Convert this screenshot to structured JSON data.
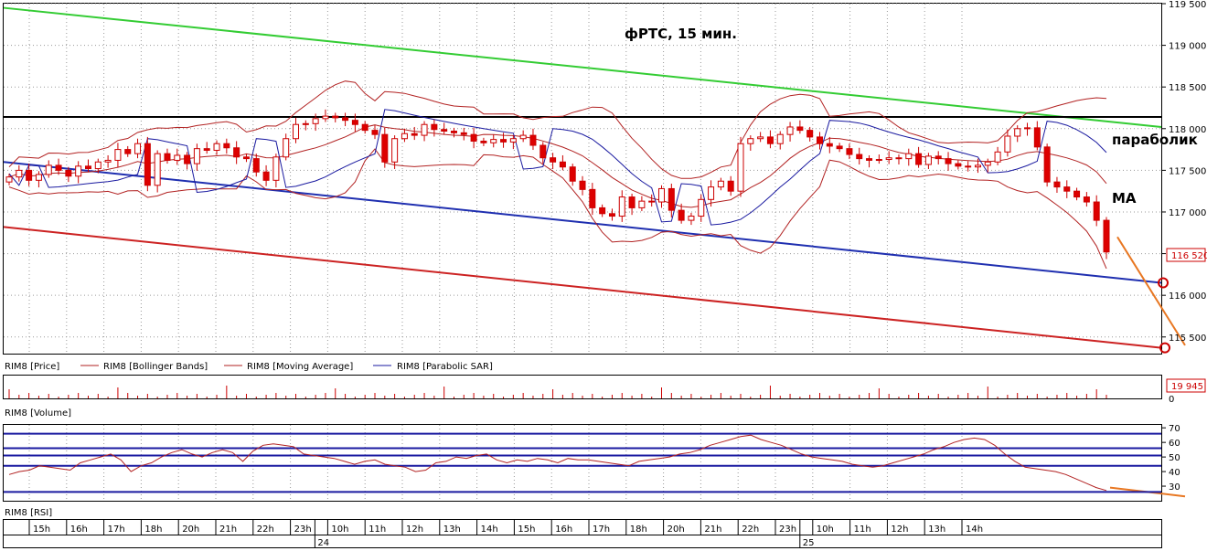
{
  "chart_data": {
    "type": "candlestick",
    "title": "фРТС, 15 мин.",
    "price_panel": {
      "ylim": [
        115300,
        119500
      ],
      "y_ticks": [
        "119 500",
        "119 000",
        "118 500",
        "118 000",
        "117 500",
        "117 000",
        "116 500",
        "116 000",
        "115 500"
      ],
      "y_tick_values": [
        119500,
        119000,
        118500,
        118000,
        117500,
        117000,
        116500,
        116000,
        115500
      ],
      "last_price_label": "116 520",
      "last_price": 116520,
      "legend": [
        {
          "name": "RIM8 [Price]",
          "color": "#cc0000"
        },
        {
          "name": "RIM8 [Bollinger Bands]",
          "color": "#b22222"
        },
        {
          "name": "RIM8 [Moving Average]",
          "color": "#b22222"
        },
        {
          "name": "RIM8 [Parabolic SAR]",
          "color": "#1a1aa0"
        }
      ],
      "annotations": [
        "параболик",
        "MA"
      ],
      "resistance_level": 118140,
      "trendlines": [
        {
          "color": "#33cc33",
          "from": 119450,
          "to": 118020
        },
        {
          "color": "#1f2fb0",
          "from": 117600,
          "to": 116150
        },
        {
          "color": "#cc2222",
          "from": 116820,
          "to": 115370
        }
      ],
      "candles_close": [
        117420,
        117500,
        117380,
        117450,
        117560,
        117500,
        117430,
        117550,
        117520,
        117600,
        117620,
        117750,
        117700,
        117820,
        117320,
        117700,
        117620,
        117680,
        117580,
        117760,
        117740,
        117820,
        117770,
        117660,
        117640,
        117480,
        117380,
        117660,
        117880,
        118050,
        118060,
        118120,
        118150,
        118130,
        118100,
        118050,
        117980,
        117930,
        117600,
        117880,
        117940,
        117920,
        118050,
        117990,
        117970,
        117950,
        117930,
        117850,
        117830,
        117870,
        117840,
        117880,
        117920,
        117800,
        117650,
        117600,
        117540,
        117370,
        117270,
        117050,
        116980,
        116950,
        117180,
        117050,
        117130,
        117120,
        117280,
        117020,
        116900,
        116950,
        117150,
        117300,
        117370,
        117250,
        117820,
        117880,
        117900,
        117820,
        117930,
        118020,
        117980,
        117900,
        117820,
        117790,
        117760,
        117690,
        117640,
        117620,
        117630,
        117650,
        117640,
        117700,
        117570,
        117670,
        117640,
        117580,
        117550,
        117540,
        117560,
        117600,
        117720,
        117910,
        118000,
        118010,
        117780,
        117360,
        117300,
        117250,
        117180,
        117120,
        116900,
        116520
      ],
      "markers": [
        116150,
        115370
      ],
      "forecast_arrow": {
        "from": 116700,
        "to": 115400
      }
    },
    "volume_panel": {
      "legend": "RIM8 [Volume]",
      "value_label": "19 945",
      "value": 19945,
      "y_ticks": [
        "0"
      ]
    },
    "rsi_panel": {
      "legend": "RIM8 [RSI]",
      "ylim": [
        20,
        72
      ],
      "y_ticks": [
        "70",
        "60",
        "50",
        "40",
        "30"
      ],
      "y_tick_values": [
        70,
        60,
        50,
        40,
        30
      ],
      "levels": [
        66,
        56,
        51,
        44,
        26
      ],
      "values": [
        38,
        40,
        41,
        44,
        43,
        42,
        41,
        46,
        48,
        50,
        52,
        48,
        40,
        44,
        46,
        50,
        53,
        55,
        52,
        50,
        53,
        55,
        53,
        47,
        54,
        58,
        59,
        58,
        57,
        52,
        51,
        50,
        49,
        47,
        45,
        47,
        48,
        45,
        44,
        43,
        40,
        41,
        46,
        47,
        50,
        49,
        51,
        52,
        48,
        46,
        48,
        47,
        49,
        48,
        46,
        49,
        48,
        48,
        47,
        46,
        45,
        44,
        47,
        48,
        49,
        50,
        52,
        53,
        55,
        58,
        60,
        62,
        64,
        65,
        62,
        60,
        58,
        55,
        52,
        50,
        49,
        48,
        47,
        45,
        44,
        43,
        44,
        46,
        48,
        50,
        52,
        55,
        57,
        60,
        62,
        63,
        62,
        58,
        52,
        47,
        43,
        42,
        41,
        40,
        38,
        35,
        32,
        29,
        27
      ],
      "forecast_arrow": {
        "from": 29,
        "to": 23
      }
    },
    "x_axis": {
      "ticks": [
        "15h",
        "16h",
        "17h",
        "18h",
        "20h",
        "21h",
        "22h",
        "23h",
        "10h",
        "11h",
        "12h",
        "13h",
        "14h",
        "15h",
        "16h",
        "17h",
        "18h",
        "20h",
        "21h",
        "22h",
        "23h",
        "10h",
        "11h",
        "12h",
        "13h",
        "14h"
      ],
      "day_labels": [
        "24",
        "25"
      ]
    }
  }
}
